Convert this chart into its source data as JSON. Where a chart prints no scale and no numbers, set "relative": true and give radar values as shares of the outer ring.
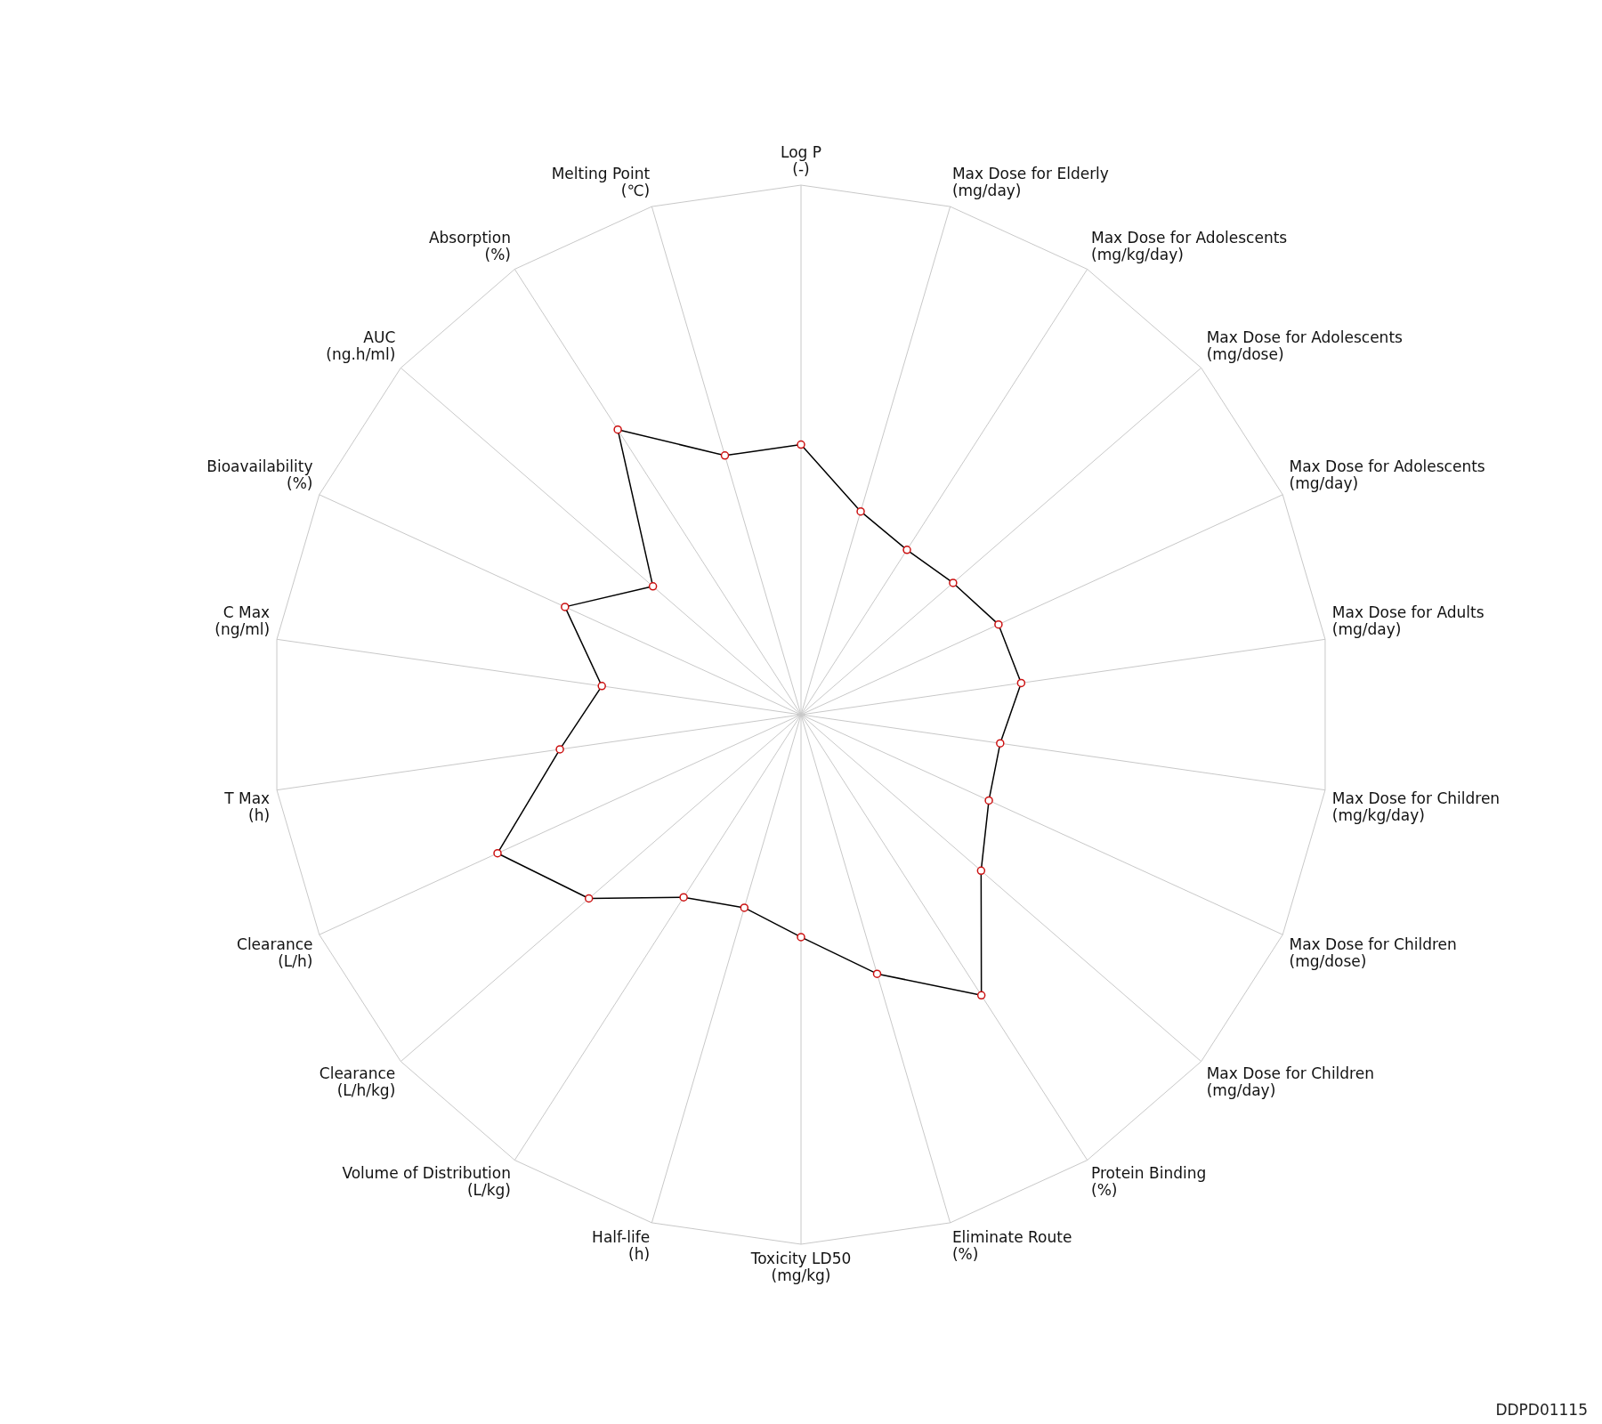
{
  "chart_data": {
    "type": "radar",
    "relative": true,
    "grid": true,
    "marker": "circle",
    "legend": false,
    "categories": [
      "Log P\n(-)",
      "Max Dose for Elderly\n(mg/day)",
      "Max Dose for Adolescents\n(mg/kg/day)",
      "Max Dose for Adolescents\n(mg/dose)",
      "Max Dose for Adolescents\n(mg/day)",
      "Max Dose for Adults\n(mg/day)",
      "Max Dose for Children\n(mg/kg/day)",
      "Max Dose for Children\n(mg/dose)",
      "Max Dose for Children\n(mg/day)",
      "Protein Binding\n(%)",
      "Eliminate Route\n(%)",
      "Toxicity LD50\n(mg/kg)",
      "Half-life\n(h)",
      "Volume of Distribution\n(L/kg)",
      "Clearance\n(L/h/kg)",
      "Clearance\n(L/h)",
      "T Max\n(h)",
      "C Max\n(ng/ml)",
      "Bioavailability\n(%)",
      "AUC\n(ng.h/ml)",
      "Absorption\n(%)",
      "Melting Point\n(℃)"
    ],
    "series": [
      {
        "color": "#000000",
        "values": [
          0.51,
          0.4,
          0.37,
          0.38,
          0.41,
          0.42,
          0.38,
          0.39,
          0.45,
          0.63,
          0.51,
          0.42,
          0.38,
          0.41,
          0.53,
          0.63,
          0.46,
          0.38,
          0.49,
          0.37,
          0.64,
          0.51
        ]
      }
    ],
    "annotations": [
      "DDPD01115"
    ]
  }
}
